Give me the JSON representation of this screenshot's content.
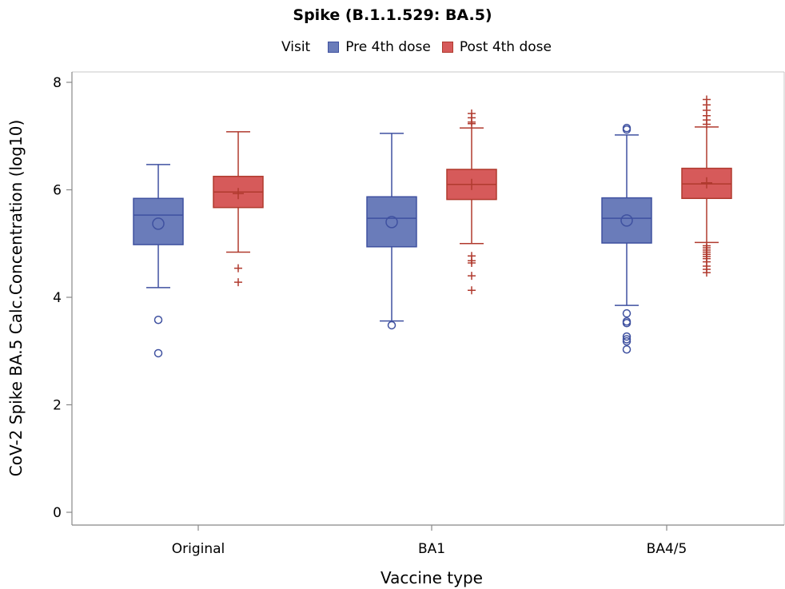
{
  "chart_data": {
    "type": "box",
    "title": "Spike (B.1.1.529: BA.5)",
    "legend_title": "Visit",
    "xlabel": "Vaccine type",
    "ylabel": "CoV-2 Spike BA.5 Calc.Concentration (log10)",
    "ylim": [
      0,
      8
    ],
    "yticks": [
      0,
      2,
      4,
      6,
      8
    ],
    "categories": [
      "Original",
      "BA1",
      "BA4/5"
    ],
    "colors": {
      "pre_fill": "#6a7cba",
      "pre_stroke": "#3f51a0",
      "post_fill": "#d65a5a",
      "post_stroke": "#b03a2e"
    },
    "series": [
      {
        "name": "Pre 4th dose",
        "boxes": [
          {
            "category": "Original",
            "whisker_low": 4.18,
            "q1": 4.98,
            "median": 5.53,
            "mean": 5.37,
            "q3": 5.84,
            "whisker_high": 6.47,
            "outliers": [
              3.58,
              2.96
            ]
          },
          {
            "category": "BA1",
            "whisker_low": 3.56,
            "q1": 4.94,
            "median": 5.47,
            "mean": 5.4,
            "q3": 5.87,
            "whisker_high": 7.05,
            "outliers": [
              3.48
            ]
          },
          {
            "category": "BA4/5",
            "whisker_low": 3.85,
            "q1": 5.01,
            "median": 5.47,
            "mean": 5.43,
            "q3": 5.85,
            "whisker_high": 7.02,
            "outliers": [
              7.12,
              7.15,
              3.7,
              3.55,
              3.52,
              3.27,
              3.22,
              3.18,
              3.03
            ]
          }
        ]
      },
      {
        "name": "Post 4th dose",
        "boxes": [
          {
            "category": "Original",
            "whisker_low": 4.84,
            "q1": 5.67,
            "median": 5.96,
            "mean": 5.93,
            "q3": 6.25,
            "whisker_high": 7.08,
            "outliers": [
              4.54,
              4.28
            ]
          },
          {
            "category": "BA1",
            "whisker_low": 5.0,
            "q1": 5.82,
            "median": 6.1,
            "mean": 6.1,
            "q3": 6.38,
            "whisker_high": 7.15,
            "outliers": [
              7.42,
              7.34,
              7.26,
              7.23,
              4.77,
              4.68,
              4.64,
              4.4,
              4.13
            ]
          },
          {
            "category": "BA4/5",
            "whisker_low": 5.02,
            "q1": 5.84,
            "median": 6.11,
            "mean": 6.13,
            "q3": 6.4,
            "whisker_high": 7.17,
            "outliers": [
              7.68,
              7.58,
              7.48,
              7.38,
              7.3,
              7.22,
              4.96,
              4.92,
              4.88,
              4.84,
              4.8,
              4.76,
              4.72,
              4.66,
              4.58,
              4.52,
              4.46
            ]
          }
        ]
      }
    ]
  }
}
